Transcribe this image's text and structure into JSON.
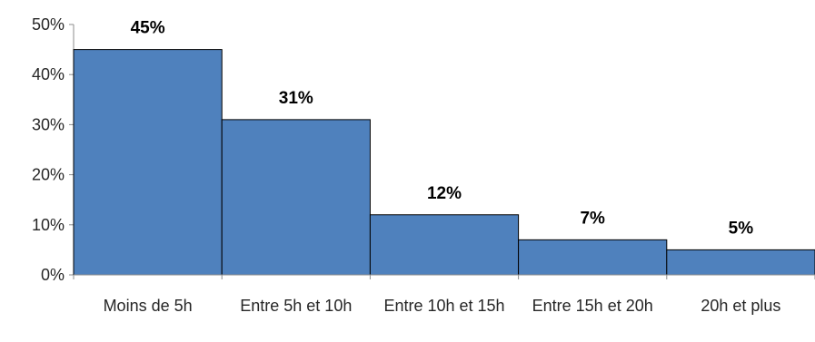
{
  "chart_data": {
    "type": "bar",
    "categories": [
      "Moins de 5h",
      "Entre 5h et 10h",
      "Entre 10h et 15h",
      "Entre 15h et 20h",
      "20h et plus"
    ],
    "values": [
      45,
      31,
      12,
      7,
      5
    ],
    "data_labels": [
      "45%",
      "31%",
      "12%",
      "7%",
      "5%"
    ],
    "yticks": [
      "0%",
      "10%",
      "20%",
      "30%",
      "40%",
      "50%"
    ],
    "ylim": [
      0,
      50
    ],
    "grid": false,
    "legend": "none",
    "bar_color": "#4f81bd",
    "border_color": "#000000"
  }
}
